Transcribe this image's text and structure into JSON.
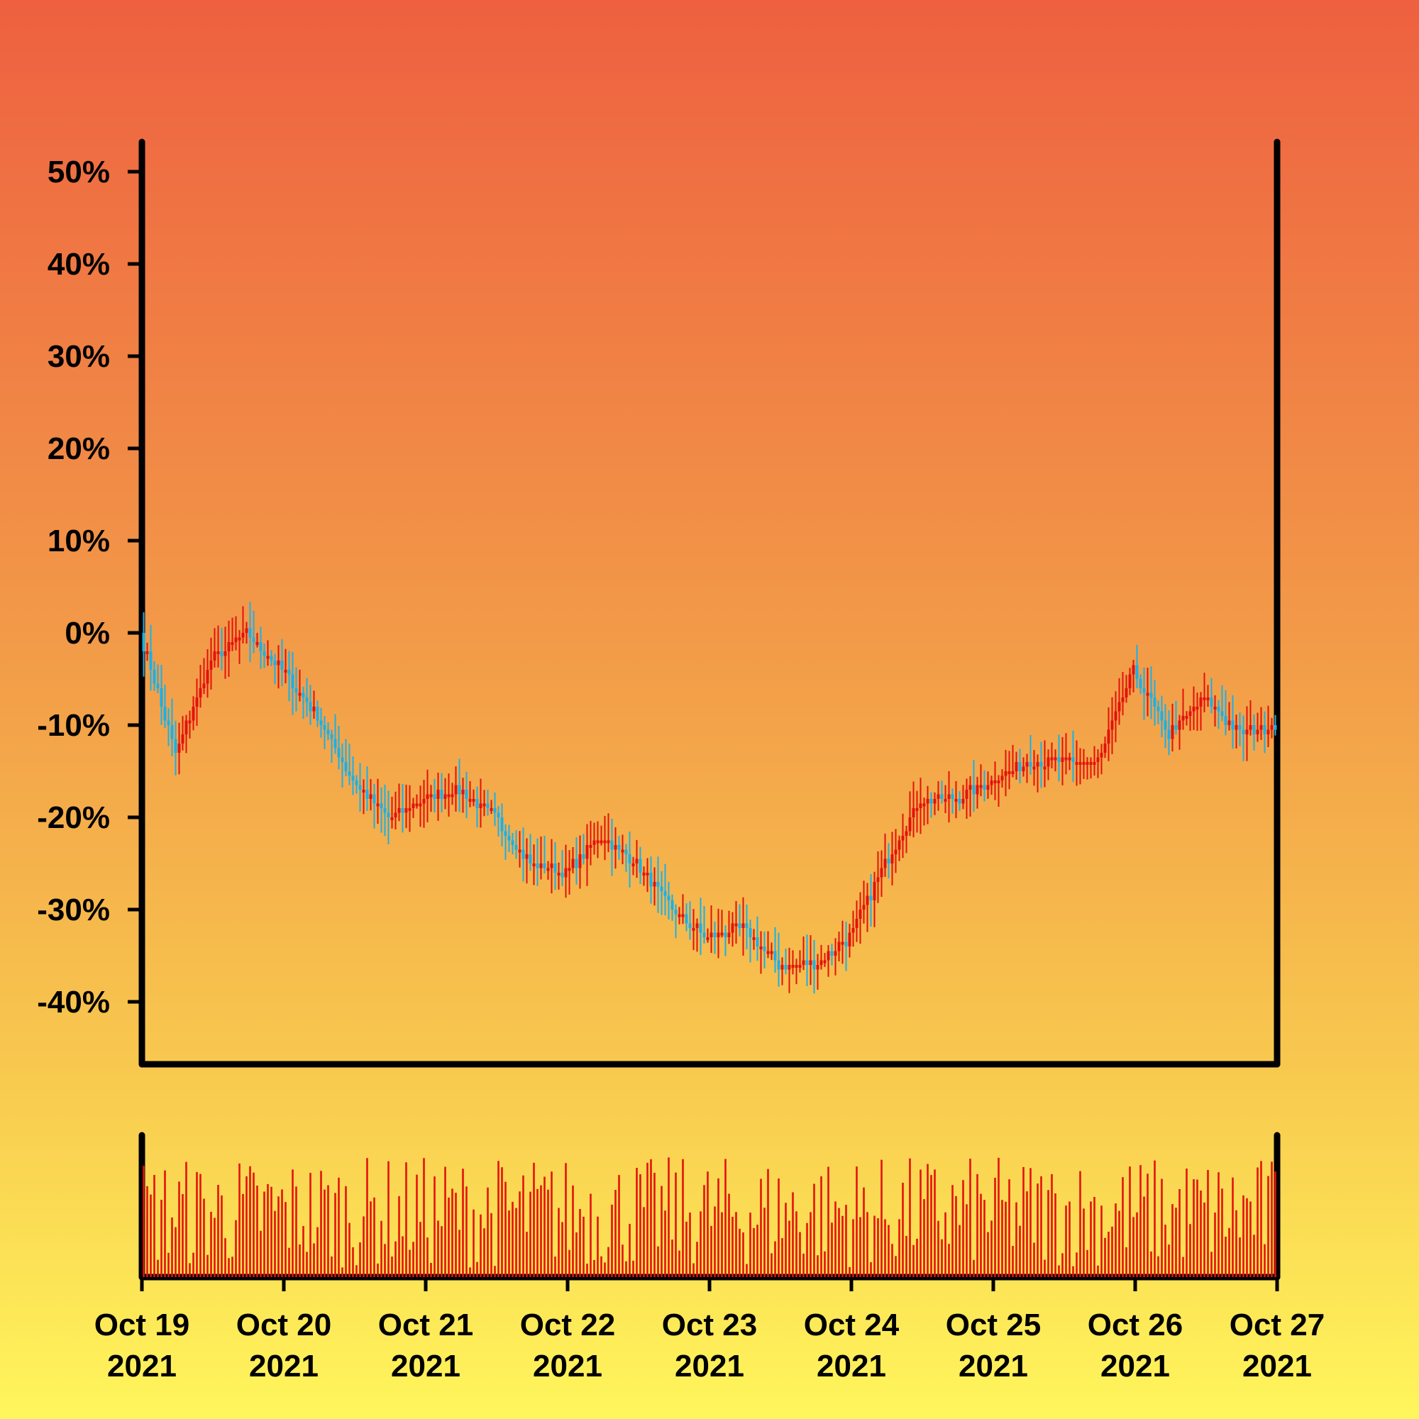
{
  "chart_data": [
    {
      "type": "candlestick",
      "name": "price",
      "y_unit": "%",
      "ylim": [
        -45,
        52
      ],
      "y_ticks": [
        {
          "value": 50,
          "label": "50%"
        },
        {
          "value": 40,
          "label": "40%"
        },
        {
          "value": 30,
          "label": "30%"
        },
        {
          "value": 20,
          "label": "20%"
        },
        {
          "value": 10,
          "label": "10%"
        },
        {
          "value": 0,
          "label": "0%"
        },
        {
          "value": -10,
          "label": "-10%"
        },
        {
          "value": -20,
          "label": "-20%"
        },
        {
          "value": -30,
          "label": "-30%"
        },
        {
          "value": -40,
          "label": "-40%"
        }
      ],
      "up_color": "#e3120b",
      "down_color": "#1ab0e8",
      "close_path": [
        {
          "x": "2021-10-19 00:00",
          "y": 0
        },
        {
          "x": "2021-10-19 06:00",
          "y": -13
        },
        {
          "x": "2021-10-19 12:00",
          "y": -3
        },
        {
          "x": "2021-10-19 18:00",
          "y": 0
        },
        {
          "x": "2021-10-20 00:00",
          "y": -4
        },
        {
          "x": "2021-10-20 06:00",
          "y": -9
        },
        {
          "x": "2021-10-20 12:00",
          "y": -16
        },
        {
          "x": "2021-10-20 18:00",
          "y": -20
        },
        {
          "x": "2021-10-21 00:00",
          "y": -18
        },
        {
          "x": "2021-10-21 06:00",
          "y": -17
        },
        {
          "x": "2021-10-21 12:00",
          "y": -20
        },
        {
          "x": "2021-10-21 18:00",
          "y": -25
        },
        {
          "x": "2021-10-22 00:00",
          "y": -26
        },
        {
          "x": "2021-10-22 06:00",
          "y": -22
        },
        {
          "x": "2021-10-22 12:00",
          "y": -25
        },
        {
          "x": "2021-10-22 18:00",
          "y": -30
        },
        {
          "x": "2021-10-23 00:00",
          "y": -33
        },
        {
          "x": "2021-10-23 06:00",
          "y": -32
        },
        {
          "x": "2021-10-23 12:00",
          "y": -36
        },
        {
          "x": "2021-10-23 18:00",
          "y": -36
        },
        {
          "x": "2021-10-24 00:00",
          "y": -33
        },
        {
          "x": "2021-10-24 06:00",
          "y": -25
        },
        {
          "x": "2021-10-24 12:00",
          "y": -18
        },
        {
          "x": "2021-10-24 18:00",
          "y": -18
        },
        {
          "x": "2021-10-25 00:00",
          "y": -16
        },
        {
          "x": "2021-10-25 06:00",
          "y": -14
        },
        {
          "x": "2021-10-25 12:00",
          "y": -14
        },
        {
          "x": "2021-10-25 18:00",
          "y": -14
        },
        {
          "x": "2021-10-26 00:00",
          "y": -4
        },
        {
          "x": "2021-10-26 06:00",
          "y": -11
        },
        {
          "x": "2021-10-26 12:00",
          "y": -7
        },
        {
          "x": "2021-10-26 18:00",
          "y": -11
        },
        {
          "x": "2021-10-27 00:00",
          "y": -10
        }
      ]
    },
    {
      "type": "bar",
      "name": "volume",
      "bar_color": "#e3120b",
      "bar_count": 320
    }
  ],
  "x_axis": {
    "ticks": [
      {
        "line1": "Oct 19",
        "line2": "2021"
      },
      {
        "line1": "Oct 20",
        "line2": "2021"
      },
      {
        "line1": "Oct 21",
        "line2": "2021"
      },
      {
        "line1": "Oct 22",
        "line2": "2021"
      },
      {
        "line1": "Oct 23",
        "line2": "2021"
      },
      {
        "line1": "Oct 24",
        "line2": "2021"
      },
      {
        "line1": "Oct 25",
        "line2": "2021"
      },
      {
        "line1": "Oct 26",
        "line2": "2021"
      },
      {
        "line1": "Oct 27",
        "line2": "2021"
      }
    ]
  }
}
